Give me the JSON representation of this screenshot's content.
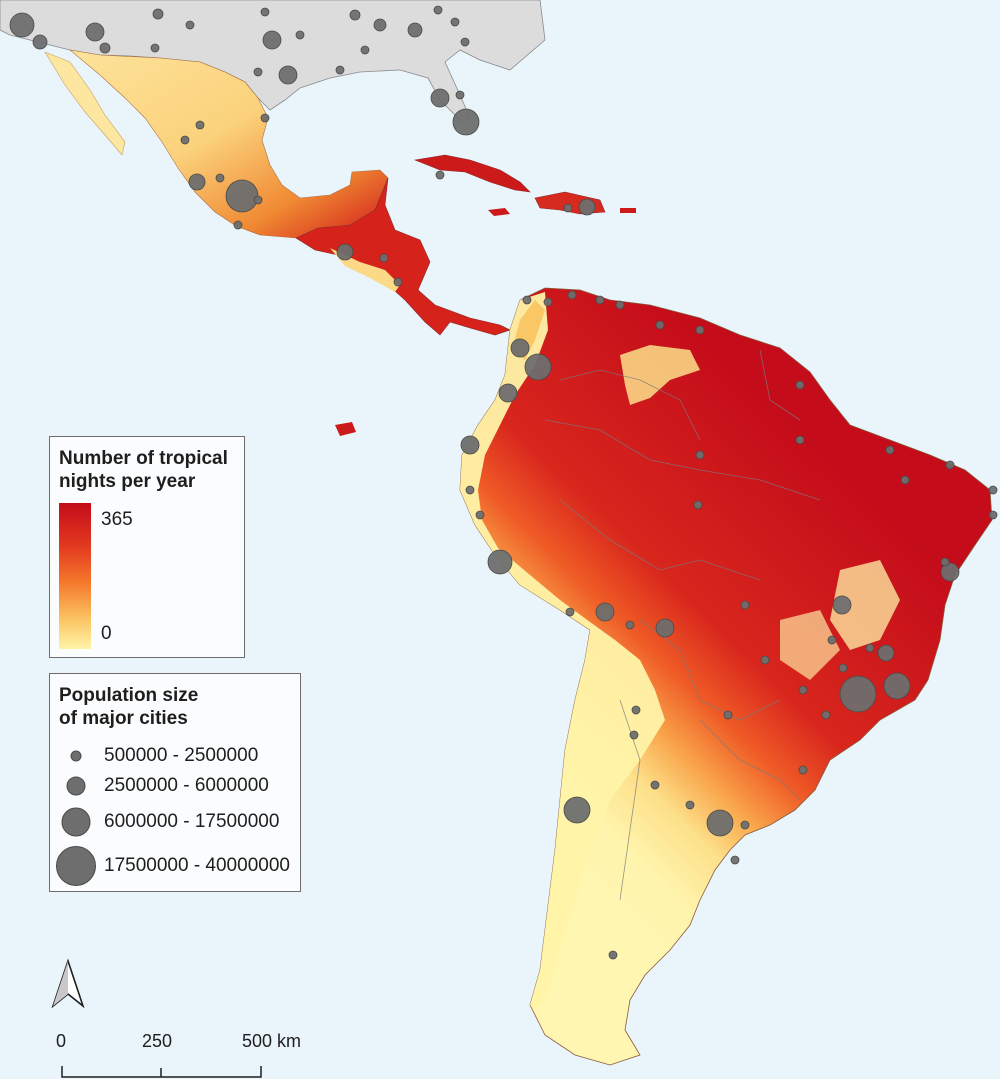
{
  "legend_tropical": {
    "title_line1": "Number of tropical",
    "title_line2": "nights per year",
    "max_label": "365",
    "min_label": "0",
    "gradient_colors": [
      "#c40c1a",
      "#e23a1f",
      "#f57a2c",
      "#fbc564",
      "#fff4a8"
    ]
  },
  "legend_population": {
    "title_line1": "Population size",
    "title_line2": "of major cities",
    "classes": [
      {
        "label": "500000 - 2500000"
      },
      {
        "label": "2500000 - 6000000"
      },
      {
        "label": "6000000 - 17500000"
      },
      {
        "label": "17500000 - 40000000"
      }
    ]
  },
  "scale_bar": {
    "labels": [
      "0",
      "250",
      "500 km"
    ]
  },
  "north_arrow": {
    "icon": "north-arrow-icon"
  },
  "colors": {
    "ocean": "#eaf4fb",
    "north_america_land": "#dcdcdc",
    "city_fill": "#6e6e6e",
    "border": "#7a7a7a"
  }
}
